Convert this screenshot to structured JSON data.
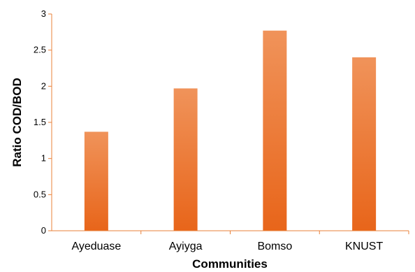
{
  "chart_data": {
    "type": "bar",
    "title": "",
    "xlabel": "Communities",
    "ylabel": "Ratio COD/BOD",
    "categories": [
      "Ayeduase",
      "Ayiyga",
      "Bomso",
      "KNUST"
    ],
    "values": [
      1.37,
      1.97,
      2.77,
      2.4
    ],
    "ylim": [
      0,
      3
    ],
    "yticks": [
      0,
      0.5,
      1,
      1.5,
      2,
      2.5,
      3
    ],
    "ytick_labels": [
      "0",
      "0.5",
      "1",
      "1.5",
      "2",
      "2.5",
      "3"
    ],
    "grid": false,
    "legend": "none",
    "colors": {
      "bar_top": "#f0935a",
      "bar_bottom": "#e8651a",
      "axis": "#e8813a"
    }
  }
}
